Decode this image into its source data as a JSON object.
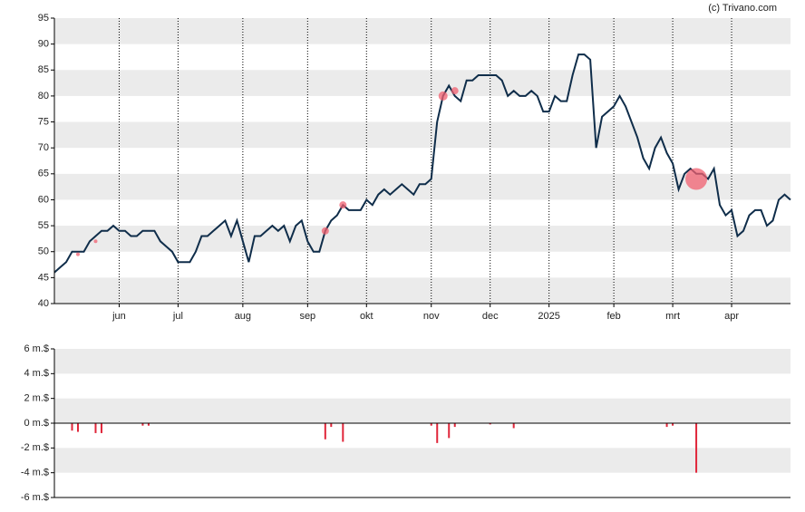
{
  "credit": "(c) Trivano.com",
  "chart_data": [
    {
      "type": "line",
      "categories": [
        null,
        null,
        null,
        null,
        null,
        null,
        null,
        null,
        null,
        null,
        null,
        "jun",
        null,
        null,
        null,
        null,
        null,
        null,
        null,
        null,
        null,
        "jul",
        null,
        null,
        null,
        null,
        null,
        null,
        null,
        null,
        null,
        null,
        "aug",
        null,
        null,
        null,
        null,
        null,
        null,
        null,
        null,
        null,
        null,
        "sep",
        null,
        null,
        null,
        null,
        null,
        null,
        null,
        null,
        null,
        "okt",
        null,
        null,
        null,
        null,
        null,
        null,
        null,
        null,
        null,
        null,
        "nov",
        null,
        null,
        null,
        null,
        null,
        null,
        null,
        null,
        null,
        "dec",
        null,
        null,
        null,
        null,
        null,
        null,
        null,
        null,
        null,
        "2025",
        null,
        null,
        null,
        null,
        null,
        null,
        null,
        null,
        null,
        null,
        "feb",
        null,
        null,
        null,
        null,
        null,
        null,
        null,
        null,
        null,
        "mrt",
        null,
        null,
        null,
        null,
        null,
        null,
        null,
        null,
        null,
        "apr",
        null,
        null,
        null,
        null,
        null,
        null,
        null,
        null,
        null,
        null
      ],
      "values": [
        46,
        47,
        48,
        50,
        50,
        50,
        52,
        53,
        54,
        54,
        55,
        54,
        54,
        53,
        53,
        54,
        54,
        54,
        52,
        51,
        50,
        48,
        48,
        48,
        50,
        53,
        53,
        54,
        55,
        56,
        53,
        56,
        52,
        48,
        53,
        53,
        54,
        55,
        54,
        55,
        52,
        55,
        56,
        52,
        50,
        50,
        54,
        56,
        57,
        59,
        58,
        58,
        58,
        60,
        59,
        61,
        62,
        61,
        62,
        63,
        62,
        61,
        63,
        63,
        64,
        75,
        80,
        82,
        80,
        79,
        83,
        83,
        84,
        84,
        84,
        84,
        83,
        80,
        81,
        80,
        80,
        81,
        80,
        77,
        77,
        80,
        79,
        79,
        84,
        88,
        88,
        87,
        70,
        76,
        77,
        78,
        80,
        78,
        75,
        72,
        68,
        66,
        70,
        72,
        69,
        67,
        62,
        65,
        66,
        65,
        65,
        64,
        66,
        59,
        57,
        58,
        53,
        54,
        57,
        58,
        58,
        55,
        56,
        60,
        61,
        60
      ],
      "color": "#0f2d4a",
      "bubbles": {
        "color": "#f06070",
        "values": [
          null,
          null,
          null,
          null,
          49.5,
          null,
          null,
          52,
          null,
          null,
          null,
          null,
          null,
          null,
          null,
          null,
          null,
          null,
          null,
          null,
          null,
          null,
          null,
          null,
          null,
          null,
          null,
          null,
          null,
          null,
          null,
          null,
          null,
          null,
          null,
          null,
          null,
          null,
          null,
          null,
          null,
          null,
          null,
          null,
          null,
          null,
          54,
          null,
          null,
          59,
          null,
          null,
          null,
          null,
          null,
          null,
          null,
          null,
          null,
          null,
          null,
          null,
          null,
          null,
          null,
          null,
          80,
          null,
          81,
          null,
          null,
          null,
          null,
          null,
          null,
          null,
          null,
          null,
          null,
          null,
          null,
          null,
          null,
          null,
          null,
          null,
          null,
          null,
          null,
          null,
          null,
          null,
          null,
          null,
          null,
          null,
          null,
          null,
          null,
          null,
          null,
          null,
          null,
          null,
          null,
          null,
          null,
          null,
          null,
          64,
          null,
          null,
          null,
          null,
          null,
          null,
          null,
          null,
          null,
          null,
          null,
          null,
          null,
          null,
          null,
          null
        ],
        "sizes": [
          null,
          null,
          null,
          null,
          2,
          null,
          null,
          2,
          null,
          null,
          null,
          null,
          null,
          null,
          null,
          null,
          null,
          null,
          null,
          null,
          null,
          null,
          null,
          null,
          null,
          null,
          null,
          null,
          null,
          null,
          null,
          null,
          null,
          null,
          null,
          null,
          null,
          null,
          null,
          null,
          null,
          null,
          null,
          null,
          null,
          null,
          4,
          null,
          null,
          4,
          null,
          null,
          null,
          null,
          null,
          null,
          null,
          null,
          null,
          null,
          null,
          null,
          null,
          null,
          null,
          null,
          5,
          null,
          4,
          null,
          null,
          null,
          null,
          null,
          null,
          null,
          null,
          null,
          null,
          null,
          null,
          null,
          null,
          null,
          null,
          null,
          null,
          null,
          null,
          null,
          null,
          null,
          null,
          null,
          null,
          null,
          null,
          null,
          null,
          null,
          null,
          null,
          null,
          null,
          null,
          null,
          null,
          null,
          null,
          12,
          null,
          null,
          null,
          null,
          null,
          null,
          null,
          null,
          null,
          null,
          null,
          null,
          null,
          null,
          null,
          null
        ]
      },
      "ylim": [
        40,
        95
      ],
      "yticks": [
        40,
        45,
        50,
        55,
        60,
        65,
        70,
        75,
        80,
        85,
        90,
        95
      ]
    },
    {
      "type": "bar",
      "values": [
        null,
        null,
        null,
        -0.6,
        -0.7,
        null,
        null,
        -0.8,
        -0.8,
        null,
        null,
        null,
        null,
        null,
        null,
        -0.2,
        -0.2,
        null,
        null,
        null,
        null,
        null,
        null,
        null,
        null,
        null,
        null,
        null,
        null,
        null,
        null,
        null,
        null,
        null,
        null,
        null,
        null,
        null,
        null,
        null,
        null,
        null,
        null,
        null,
        null,
        null,
        -1.3,
        -0.3,
        null,
        -1.5,
        null,
        null,
        null,
        null,
        null,
        null,
        null,
        null,
        null,
        null,
        null,
        null,
        null,
        null,
        -0.2,
        -1.6,
        null,
        -1.2,
        -0.3,
        null,
        null,
        null,
        null,
        null,
        -0.1,
        null,
        null,
        null,
        -0.4,
        null,
        null,
        null,
        null,
        null,
        null,
        null,
        null,
        null,
        null,
        null,
        null,
        null,
        null,
        null,
        null,
        null,
        null,
        null,
        null,
        null,
        null,
        null,
        null,
        null,
        -0.3,
        -0.2,
        null,
        null,
        null,
        -4.0,
        null,
        null,
        null,
        null,
        null,
        null,
        null,
        null,
        null,
        null,
        null,
        null,
        null,
        null,
        null,
        null
      ],
      "color": "#e0263a",
      "ylim": [
        -6,
        6
      ],
      "yticks": [
        {
          "value": -6,
          "label": "-6 m.$"
        },
        {
          "value": -4,
          "label": "-4 m.$"
        },
        {
          "value": -2,
          "label": "-2 m.$"
        },
        {
          "value": 0,
          "label": "0 m.$"
        },
        {
          "value": 2,
          "label": "2 m.$"
        },
        {
          "value": 4,
          "label": "4 m.$"
        },
        {
          "value": 6,
          "label": "6 m.$"
        }
      ]
    }
  ]
}
